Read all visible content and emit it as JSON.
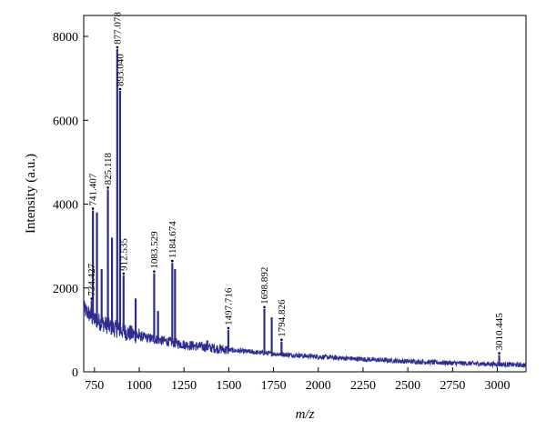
{
  "chart_data": {
    "type": "line",
    "title": "",
    "xlabel": "m/z",
    "ylabel": "Intensity (a.u.)",
    "xlim": [
      690,
      3160
    ],
    "ylim": [
      0,
      8500
    ],
    "x_ticks": [
      750,
      1000,
      1250,
      1500,
      1750,
      2000,
      2250,
      2500,
      2750,
      3000
    ],
    "y_ticks": [
      0,
      2000,
      4000,
      6000,
      8000
    ],
    "grid": false,
    "legend": "none",
    "colors": {
      "spectrum": "#2e2d8f",
      "peak_marker": "#000000",
      "axis": "#000000"
    },
    "baseline": [
      {
        "x": 690,
        "y": 1500
      },
      {
        "x": 750,
        "y": 1250
      },
      {
        "x": 850,
        "y": 1050
      },
      {
        "x": 1000,
        "y": 850
      },
      {
        "x": 1250,
        "y": 650
      },
      {
        "x": 1500,
        "y": 520
      },
      {
        "x": 1750,
        "y": 430
      },
      {
        "x": 2000,
        "y": 360
      },
      {
        "x": 2250,
        "y": 300
      },
      {
        "x": 2500,
        "y": 250
      },
      {
        "x": 2750,
        "y": 210
      },
      {
        "x": 3000,
        "y": 180
      },
      {
        "x": 3160,
        "y": 160
      }
    ],
    "peaks": [
      {
        "x": 734.427,
        "y": 1700,
        "label": "734.427"
      },
      {
        "x": 741.407,
        "y": 3850,
        "label": "741.407"
      },
      {
        "x": 764,
        "y": 3800,
        "label": ""
      },
      {
        "x": 790,
        "y": 2450,
        "label": ""
      },
      {
        "x": 825.118,
        "y": 4350,
        "label": "825.118"
      },
      {
        "x": 848,
        "y": 3200,
        "label": ""
      },
      {
        "x": 877.078,
        "y": 7700,
        "label": "877.078"
      },
      {
        "x": 893.04,
        "y": 6700,
        "label": "893.040"
      },
      {
        "x": 912.535,
        "y": 2300,
        "label": "912.535"
      },
      {
        "x": 980,
        "y": 1750,
        "label": ""
      },
      {
        "x": 1083.529,
        "y": 2350,
        "label": "1083.529"
      },
      {
        "x": 1105,
        "y": 1450,
        "label": ""
      },
      {
        "x": 1184.674,
        "y": 2600,
        "label": "1184.674"
      },
      {
        "x": 1200,
        "y": 2450,
        "label": ""
      },
      {
        "x": 1380,
        "y": 750,
        "label": ""
      },
      {
        "x": 1497.716,
        "y": 1000,
        "label": "1497.716"
      },
      {
        "x": 1698.892,
        "y": 1500,
        "label": "1698.892"
      },
      {
        "x": 1740,
        "y": 1300,
        "label": ""
      },
      {
        "x": 1794.826,
        "y": 720,
        "label": "1794.826"
      },
      {
        "x": 3010.445,
        "y": 400,
        "label": "3010.445"
      }
    ]
  }
}
